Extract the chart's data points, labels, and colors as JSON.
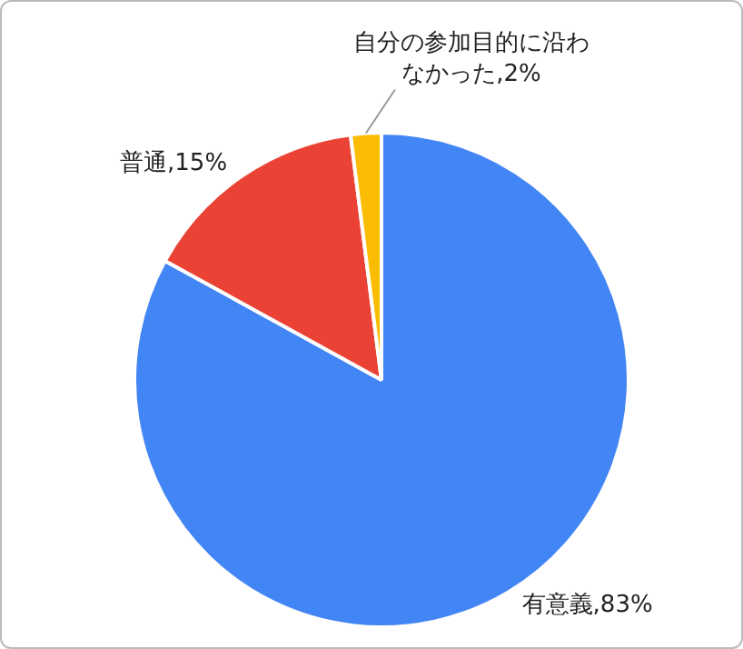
{
  "chart_data": {
    "type": "pie",
    "categories": [
      "有意義",
      "普通",
      "自分の参加目的に沿わなかった"
    ],
    "values": [
      83,
      15,
      2
    ],
    "colors": [
      "#4285f4",
      "#ea4335",
      "#fbbc04"
    ],
    "value_labels": [
      "83%",
      "15%",
      "2%"
    ],
    "legend": false
  }
}
